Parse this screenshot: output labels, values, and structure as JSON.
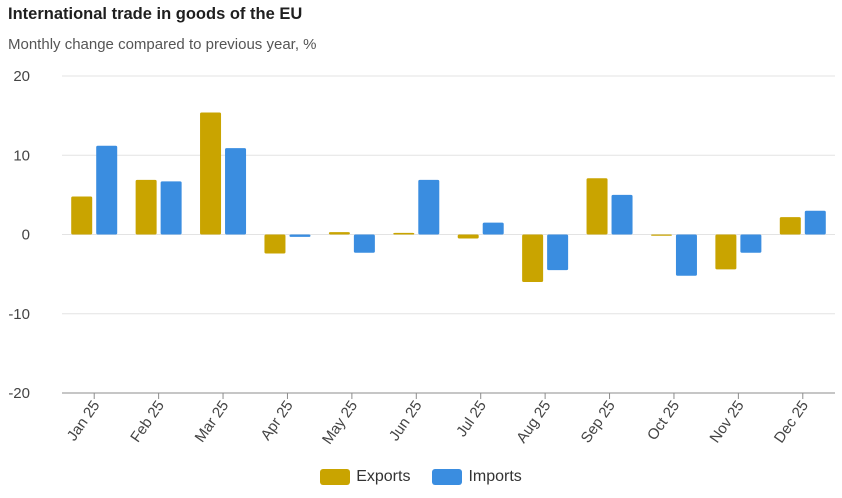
{
  "chart_data": {
    "type": "bar",
    "title": "International trade in goods of the EU",
    "subtitle": "Monthly change compared to previous year, %",
    "categories": [
      "Jan 25",
      "Feb 25",
      "Mar 25",
      "Apr 25",
      "May 25",
      "Jun 25",
      "Jul 25",
      "Aug 25",
      "Sep 25",
      "Oct 25",
      "Nov 25",
      "Dec 25"
    ],
    "series": [
      {
        "name": "Exports",
        "color": "#c9a400",
        "values": [
          4.8,
          6.9,
          15.4,
          -2.4,
          0.3,
          0.2,
          -0.5,
          -6.0,
          7.1,
          -0.1,
          -4.4,
          2.2
        ]
      },
      {
        "name": "Imports",
        "color": "#3a8de0",
        "values": [
          11.2,
          6.7,
          10.9,
          -0.3,
          -2.3,
          6.9,
          1.5,
          -4.5,
          5.0,
          -5.2,
          -2.3,
          3.0
        ]
      }
    ],
    "y_ticks": [
      20,
      10,
      0,
      -10,
      -20
    ],
    "ylim": [
      -20,
      20
    ],
    "grid": true,
    "legend_position": "bottom-center"
  }
}
